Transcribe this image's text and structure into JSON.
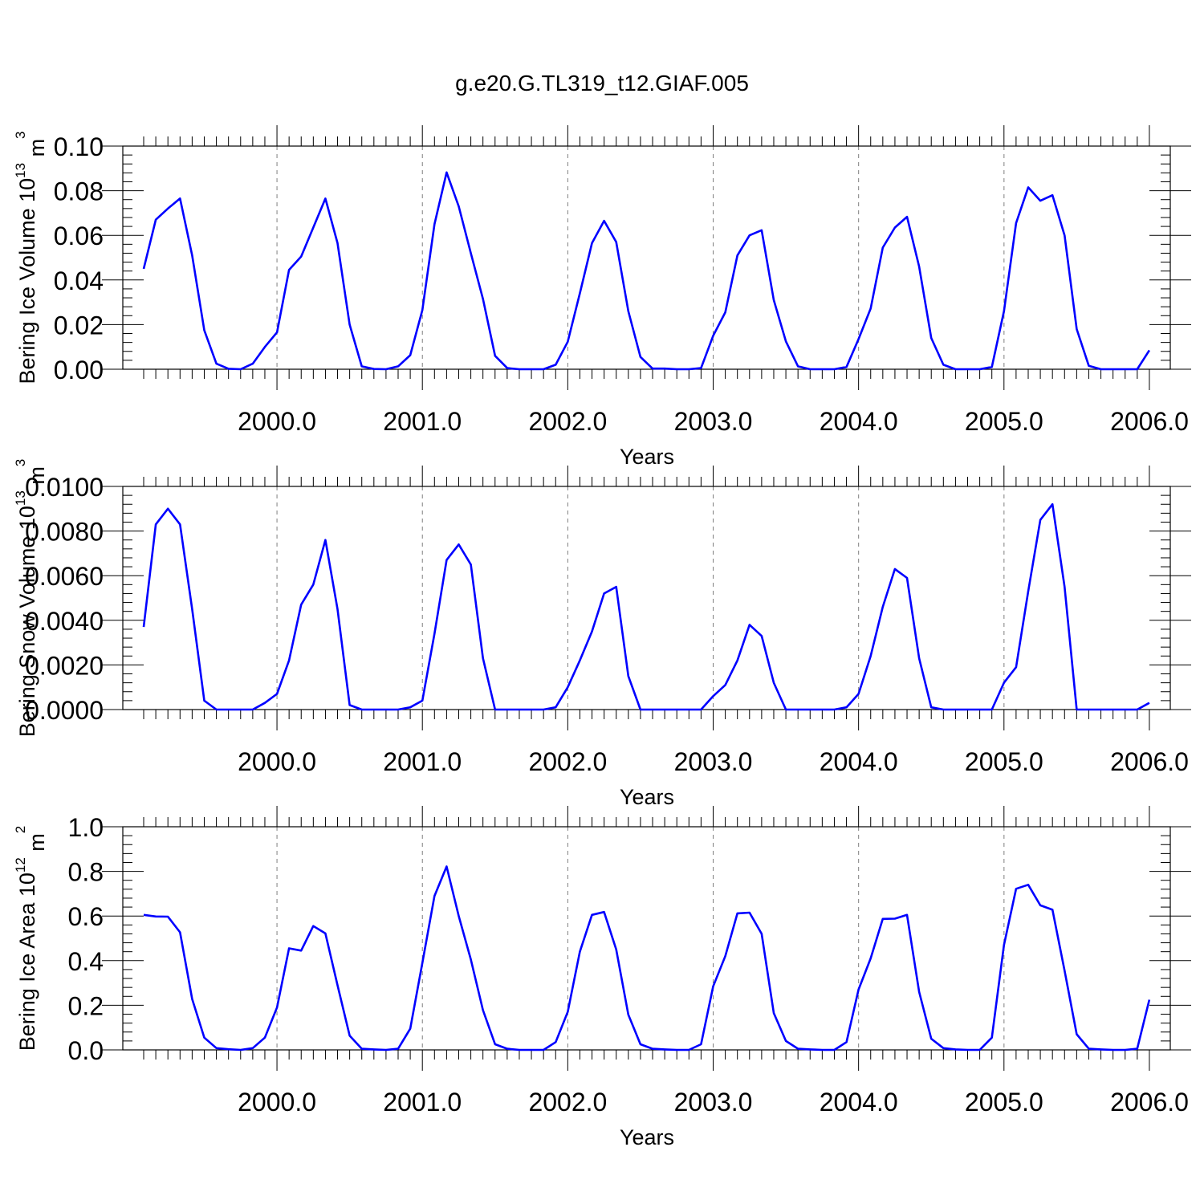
{
  "figure": {
    "title": "g.e20.G.TL319_t12.GIAF.005",
    "series_color": "#0000ff"
  },
  "chart_data": [
    {
      "type": "line",
      "ylabel_main": "Bering Ice Volume 10",
      "ylabel_exp": "13",
      "ylabel_unit": " m",
      "ylabel_unit_exp": "3",
      "xlabel": "Years",
      "xlim": [
        1999.0833,
        2006.0
      ],
      "ylim": [
        0,
        0.1
      ],
      "x_ticks": [
        2000.0,
        2001.0,
        2002.0,
        2003.0,
        2004.0,
        2005.0,
        2006.0
      ],
      "x_tick_labels": [
        "2000.0",
        "2001.0",
        "2002.0",
        "2003.0",
        "2004.0",
        "2005.0",
        "2006.0"
      ],
      "y_ticks": [
        0.0,
        0.02,
        0.04,
        0.06,
        0.08,
        0.1
      ],
      "y_tick_labels": [
        "0.00",
        "0.02",
        "0.04",
        "0.06",
        "0.08",
        "0.10"
      ],
      "grid": "dashed vertical at year boundaries",
      "x_start": 1999.0833,
      "x_step": 0.08333,
      "values": [
        0.045,
        0.067,
        0.072,
        0.0765,
        0.051,
        0.0175,
        0.0025,
        0.0002,
        0.0,
        0.0025,
        0.01,
        0.0165,
        0.0445,
        0.0505,
        0.0635,
        0.0765,
        0.0565,
        0.02,
        0.0013,
        0.0001,
        0.0,
        0.0013,
        0.0063,
        0.0265,
        0.065,
        0.0882,
        0.073,
        0.052,
        0.0315,
        0.006,
        0.0005,
        0.0,
        0.0,
        0.0,
        0.002,
        0.0123,
        0.034,
        0.0565,
        0.0665,
        0.057,
        0.026,
        0.0055,
        0.0003,
        0.0003,
        0.0,
        0.0,
        0.0005,
        0.015,
        0.0255,
        0.051,
        0.06,
        0.0623,
        0.031,
        0.0125,
        0.0013,
        0.0,
        0.0,
        0.0,
        0.001,
        0.0135,
        0.0272,
        0.0545,
        0.0635,
        0.0683,
        0.046,
        0.014,
        0.002,
        0.0,
        0.0,
        0.0,
        0.001,
        0.026,
        0.0655,
        0.0815,
        0.0755,
        0.078,
        0.06,
        0.018,
        0.0015,
        0.0,
        0.0,
        0.0,
        0.0,
        0.0085
      ]
    },
    {
      "type": "line",
      "ylabel_main": "Bering Snow Volume 10",
      "ylabel_exp": "13",
      "ylabel_unit": " m",
      "ylabel_unit_exp": "3",
      "xlabel": "Years",
      "xlim": [
        1999.0833,
        2006.0
      ],
      "ylim": [
        0,
        0.01
      ],
      "x_ticks": [
        2000.0,
        2001.0,
        2002.0,
        2003.0,
        2004.0,
        2005.0,
        2006.0
      ],
      "x_tick_labels": [
        "2000.0",
        "2001.0",
        "2002.0",
        "2003.0",
        "2004.0",
        "2005.0",
        "2006.0"
      ],
      "y_ticks": [
        0.0,
        0.002,
        0.004,
        0.006,
        0.008,
        0.01
      ],
      "y_tick_labels": [
        "0.0000",
        "0.0020",
        "0.0040",
        "0.0060",
        "0.0080",
        "0.0100"
      ],
      "grid": "dashed vertical at year boundaries",
      "x_start": 1999.0833,
      "x_step": 0.08333,
      "values": [
        0.0037,
        0.0083,
        0.009,
        0.0083,
        0.0045,
        0.0004,
        0.0,
        0.0,
        0.0,
        0.0,
        0.0003,
        0.0007,
        0.0022,
        0.0047,
        0.0056,
        0.0076,
        0.0045,
        0.0002,
        0.0,
        0.0,
        0.0,
        0.0,
        0.0001,
        0.0004,
        0.0034,
        0.0067,
        0.0074,
        0.0065,
        0.0023,
        0.0,
        0.0,
        0.0,
        0.0,
        0.0,
        0.0001,
        0.001,
        0.0022,
        0.0035,
        0.0052,
        0.0055,
        0.0015,
        0.0,
        0.0,
        0.0,
        0.0,
        0.0,
        0.0,
        0.0006,
        0.0011,
        0.0022,
        0.0038,
        0.0033,
        0.0012,
        0.0,
        0.0,
        0.0,
        0.0,
        0.0,
        0.0001,
        0.0007,
        0.0024,
        0.0046,
        0.0063,
        0.0059,
        0.0023,
        0.0001,
        0.0,
        0.0,
        0.0,
        0.0,
        0.0,
        0.0012,
        0.0019,
        0.0053,
        0.0085,
        0.0092,
        0.0055,
        0.0,
        0.0,
        0.0,
        0.0,
        0.0,
        0.0,
        0.0003
      ]
    },
    {
      "type": "line",
      "ylabel_main": "Bering Ice Area 10",
      "ylabel_exp": "12",
      "ylabel_unit": " m",
      "ylabel_unit_exp": "2",
      "xlabel": "Years",
      "xlim": [
        1999.0833,
        2006.0
      ],
      "ylim": [
        0,
        1.0
      ],
      "x_ticks": [
        2000.0,
        2001.0,
        2002.0,
        2003.0,
        2004.0,
        2005.0,
        2006.0
      ],
      "x_tick_labels": [
        "2000.0",
        "2001.0",
        "2002.0",
        "2003.0",
        "2004.0",
        "2005.0",
        "2006.0"
      ],
      "y_ticks": [
        0.0,
        0.2,
        0.4,
        0.6,
        0.8,
        1.0
      ],
      "y_tick_labels": [
        "0.0",
        "0.2",
        "0.4",
        "0.6",
        "0.8",
        "1.0"
      ],
      "grid": "dashed vertical at year boundaries",
      "x_start": 1999.0833,
      "x_step": 0.08333,
      "values": [
        0.605,
        0.598,
        0.597,
        0.527,
        0.228,
        0.055,
        0.008,
        0.003,
        0.0,
        0.008,
        0.055,
        0.19,
        0.455,
        0.445,
        0.555,
        0.522,
        0.29,
        0.064,
        0.005,
        0.002,
        0.0,
        0.005,
        0.095,
        0.39,
        0.69,
        0.822,
        0.6,
        0.405,
        0.178,
        0.025,
        0.005,
        0.0,
        0.0,
        0.0,
        0.035,
        0.17,
        0.44,
        0.605,
        0.618,
        0.45,
        0.158,
        0.025,
        0.005,
        0.002,
        0.0,
        0.0,
        0.025,
        0.285,
        0.42,
        0.612,
        0.615,
        0.52,
        0.165,
        0.04,
        0.005,
        0.002,
        0.0,
        0.0,
        0.035,
        0.27,
        0.41,
        0.587,
        0.588,
        0.605,
        0.26,
        0.05,
        0.008,
        0.002,
        0.0,
        0.0,
        0.055,
        0.47,
        0.722,
        0.74,
        0.648,
        0.628,
        0.355,
        0.07,
        0.005,
        0.002,
        0.0,
        0.0,
        0.005,
        0.225
      ]
    }
  ]
}
